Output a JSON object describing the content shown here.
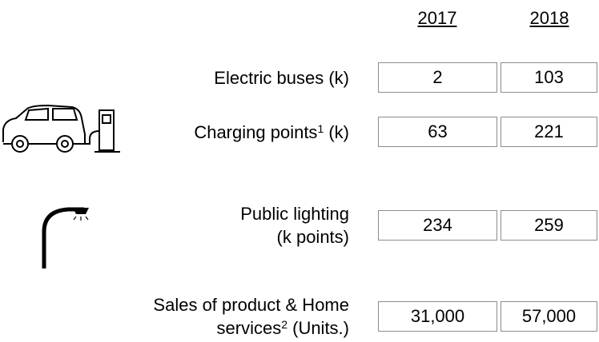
{
  "header": {
    "years": [
      "2017",
      "2018"
    ]
  },
  "rows": [
    {
      "label": [
        [
          {
            "text": "Electric buses (k)"
          }
        ]
      ],
      "values": [
        "2",
        "103"
      ]
    },
    {
      "label": [
        [
          {
            "text": "Charging points"
          },
          {
            "sup": "1"
          },
          {
            "text": " (k)"
          }
        ]
      ],
      "values": [
        "63",
        "221"
      ]
    },
    {
      "label": [
        [
          {
            "text": "Public lighting"
          }
        ],
        [
          {
            "text": "(k points)"
          }
        ]
      ],
      "values": [
        "234",
        "259"
      ]
    },
    {
      "label": [
        [
          {
            "text": "Sales of product & Home"
          }
        ],
        [
          {
            "text": "services"
          },
          {
            "sup": "2"
          },
          {
            "text": " (Units.)"
          }
        ]
      ],
      "values": [
        "31,000",
        "57,000"
      ]
    }
  ]
}
